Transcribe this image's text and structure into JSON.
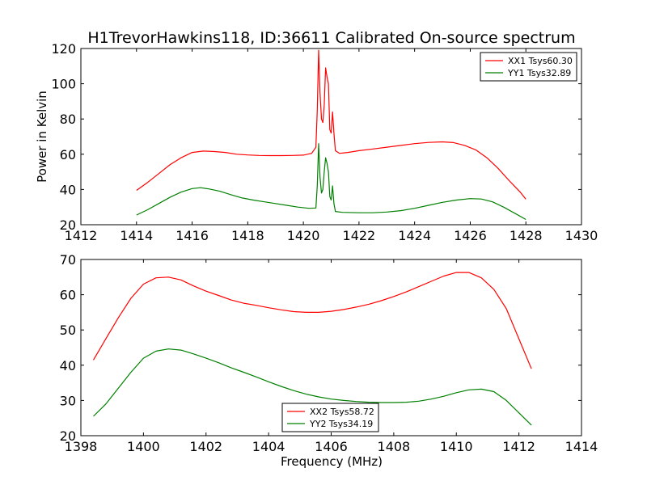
{
  "figure": {
    "title": "H1TrevorHawkins118, ID:36611 Calibrated On-source spectrum",
    "xlabel": "Frequency (MHz)",
    "ylabel": "Power in Kelvin"
  },
  "chart_data": [
    {
      "type": "line",
      "xlim": [
        1412,
        1430
      ],
      "ylim": [
        20,
        120
      ],
      "xticks": [
        1412,
        1414,
        1416,
        1418,
        1420,
        1422,
        1424,
        1426,
        1428,
        1430
      ],
      "yticks": [
        20,
        40,
        60,
        80,
        100,
        120
      ],
      "grid": false,
      "legend": "top-right",
      "series": [
        {
          "name": "XX1 Tsys60.30",
          "color": "#ff0000",
          "points": [
            [
              1414.0,
              39.5
            ],
            [
              1414.4,
              44
            ],
            [
              1414.8,
              49
            ],
            [
              1415.2,
              54
            ],
            [
              1415.6,
              58
            ],
            [
              1416.0,
              61
            ],
            [
              1416.4,
              61.8
            ],
            [
              1416.8,
              61.5
            ],
            [
              1417.2,
              61
            ],
            [
              1417.6,
              60
            ],
            [
              1418.0,
              59.6
            ],
            [
              1418.4,
              59.3
            ],
            [
              1418.8,
              59.2
            ],
            [
              1419.2,
              59.2
            ],
            [
              1419.6,
              59.3
            ],
            [
              1420.0,
              59.5
            ],
            [
              1420.3,
              60.5
            ],
            [
              1420.45,
              64
            ],
            [
              1420.5,
              85
            ],
            [
              1420.55,
              119
            ],
            [
              1420.6,
              95
            ],
            [
              1420.65,
              80
            ],
            [
              1420.7,
              78
            ],
            [
              1420.75,
              88
            ],
            [
              1420.8,
              109
            ],
            [
              1420.85,
              104
            ],
            [
              1420.9,
              100
            ],
            [
              1420.95,
              74
            ],
            [
              1421.0,
              72
            ],
            [
              1421.05,
              84
            ],
            [
              1421.1,
              72
            ],
            [
              1421.15,
              62
            ],
            [
              1421.3,
              60.5
            ],
            [
              1421.6,
              61
            ],
            [
              1422.0,
              62
            ],
            [
              1422.5,
              63
            ],
            [
              1423.0,
              64
            ],
            [
              1423.5,
              65
            ],
            [
              1424.0,
              66
            ],
            [
              1424.5,
              66.7
            ],
            [
              1425.0,
              67
            ],
            [
              1425.4,
              66.6
            ],
            [
              1425.8,
              65
            ],
            [
              1426.2,
              62.5
            ],
            [
              1426.6,
              58
            ],
            [
              1427.0,
              52
            ],
            [
              1427.4,
              45
            ],
            [
              1427.8,
              38.5
            ],
            [
              1428.0,
              34.5
            ]
          ]
        },
        {
          "name": "YY1 Tsys32.89",
          "color": "#008000",
          "points": [
            [
              1414.0,
              25.5
            ],
            [
              1414.4,
              28.5
            ],
            [
              1414.8,
              32
            ],
            [
              1415.2,
              35.5
            ],
            [
              1415.6,
              38.5
            ],
            [
              1416.0,
              40.5
            ],
            [
              1416.3,
              41
            ],
            [
              1416.6,
              40.3
            ],
            [
              1417.0,
              39
            ],
            [
              1417.4,
              37
            ],
            [
              1417.8,
              35.2
            ],
            [
              1418.2,
              34
            ],
            [
              1418.6,
              33
            ],
            [
              1419.0,
              32
            ],
            [
              1419.4,
              31
            ],
            [
              1419.8,
              30
            ],
            [
              1420.2,
              29.3
            ],
            [
              1420.45,
              29.5
            ],
            [
              1420.5,
              42
            ],
            [
              1420.55,
              66
            ],
            [
              1420.6,
              47
            ],
            [
              1420.65,
              38
            ],
            [
              1420.7,
              40
            ],
            [
              1420.75,
              50
            ],
            [
              1420.8,
              58
            ],
            [
              1420.85,
              55
            ],
            [
              1420.9,
              50
            ],
            [
              1420.95,
              36
            ],
            [
              1421.0,
              34
            ],
            [
              1421.05,
              42
            ],
            [
              1421.1,
              32
            ],
            [
              1421.15,
              27.5
            ],
            [
              1421.4,
              27
            ],
            [
              1422.0,
              26.8
            ],
            [
              1422.5,
              26.8
            ],
            [
              1423.0,
              27.2
            ],
            [
              1423.5,
              28
            ],
            [
              1424.0,
              29.3
            ],
            [
              1424.5,
              31
            ],
            [
              1425.0,
              32.7
            ],
            [
              1425.5,
              34
            ],
            [
              1426.0,
              34.8
            ],
            [
              1426.4,
              34.6
            ],
            [
              1426.8,
              33
            ],
            [
              1427.2,
              30
            ],
            [
              1427.6,
              26.5
            ],
            [
              1428.0,
              23
            ]
          ]
        }
      ]
    },
    {
      "type": "line",
      "xlim": [
        1398,
        1414
      ],
      "ylim": [
        20,
        70
      ],
      "xticks": [
        1398,
        1400,
        1402,
        1404,
        1406,
        1408,
        1410,
        1412,
        1414
      ],
      "yticks": [
        20,
        30,
        40,
        50,
        60,
        70
      ],
      "grid": false,
      "legend": "lower-center",
      "series": [
        {
          "name": "XX2 Tsys58.72",
          "color": "#ff0000",
          "points": [
            [
              1398.4,
              41.5
            ],
            [
              1398.8,
              47.5
            ],
            [
              1399.2,
              53.5
            ],
            [
              1399.6,
              59
            ],
            [
              1400.0,
              63
            ],
            [
              1400.4,
              64.8
            ],
            [
              1400.8,
              65
            ],
            [
              1401.2,
              64.2
            ],
            [
              1401.6,
              62.5
            ],
            [
              1402.0,
              61
            ],
            [
              1402.4,
              59.8
            ],
            [
              1402.8,
              58.5
            ],
            [
              1403.2,
              57.6
            ],
            [
              1403.6,
              57
            ],
            [
              1404.0,
              56.3
            ],
            [
              1404.4,
              55.7
            ],
            [
              1404.8,
              55.2
            ],
            [
              1405.2,
              55
            ],
            [
              1405.6,
              55
            ],
            [
              1406.0,
              55.3
            ],
            [
              1406.4,
              55.8
            ],
            [
              1406.8,
              56.5
            ],
            [
              1407.2,
              57.3
            ],
            [
              1407.6,
              58.3
            ],
            [
              1408.0,
              59.5
            ],
            [
              1408.4,
              60.8
            ],
            [
              1408.8,
              62.3
            ],
            [
              1409.2,
              63.8
            ],
            [
              1409.6,
              65.3
            ],
            [
              1410.0,
              66.3
            ],
            [
              1410.4,
              66.3
            ],
            [
              1410.8,
              64.8
            ],
            [
              1411.2,
              61.5
            ],
            [
              1411.6,
              56
            ],
            [
              1412.0,
              47.5
            ],
            [
              1412.4,
              39
            ]
          ]
        },
        {
          "name": "YY2 Tsys34.19",
          "color": "#008000",
          "points": [
            [
              1398.4,
              25.5
            ],
            [
              1398.8,
              29
            ],
            [
              1399.2,
              33.5
            ],
            [
              1399.6,
              38
            ],
            [
              1400.0,
              42
            ],
            [
              1400.4,
              44
            ],
            [
              1400.8,
              44.6
            ],
            [
              1401.2,
              44.3
            ],
            [
              1401.6,
              43.2
            ],
            [
              1402.0,
              42
            ],
            [
              1402.4,
              40.7
            ],
            [
              1402.8,
              39.3
            ],
            [
              1403.2,
              38
            ],
            [
              1403.6,
              36.7
            ],
            [
              1404.0,
              35.3
            ],
            [
              1404.4,
              34
            ],
            [
              1404.8,
              32.8
            ],
            [
              1405.2,
              31.8
            ],
            [
              1405.6,
              31
            ],
            [
              1406.0,
              30.4
            ],
            [
              1406.4,
              30
            ],
            [
              1406.8,
              29.7
            ],
            [
              1407.2,
              29.5
            ],
            [
              1407.6,
              29.4
            ],
            [
              1408.0,
              29.4
            ],
            [
              1408.4,
              29.5
            ],
            [
              1408.8,
              29.8
            ],
            [
              1409.2,
              30.4
            ],
            [
              1409.6,
              31.2
            ],
            [
              1410.0,
              32.2
            ],
            [
              1410.4,
              33
            ],
            [
              1410.8,
              33.2
            ],
            [
              1411.2,
              32.5
            ],
            [
              1411.6,
              30
            ],
            [
              1412.0,
              26.5
            ],
            [
              1412.4,
              23
            ]
          ]
        }
      ]
    }
  ]
}
